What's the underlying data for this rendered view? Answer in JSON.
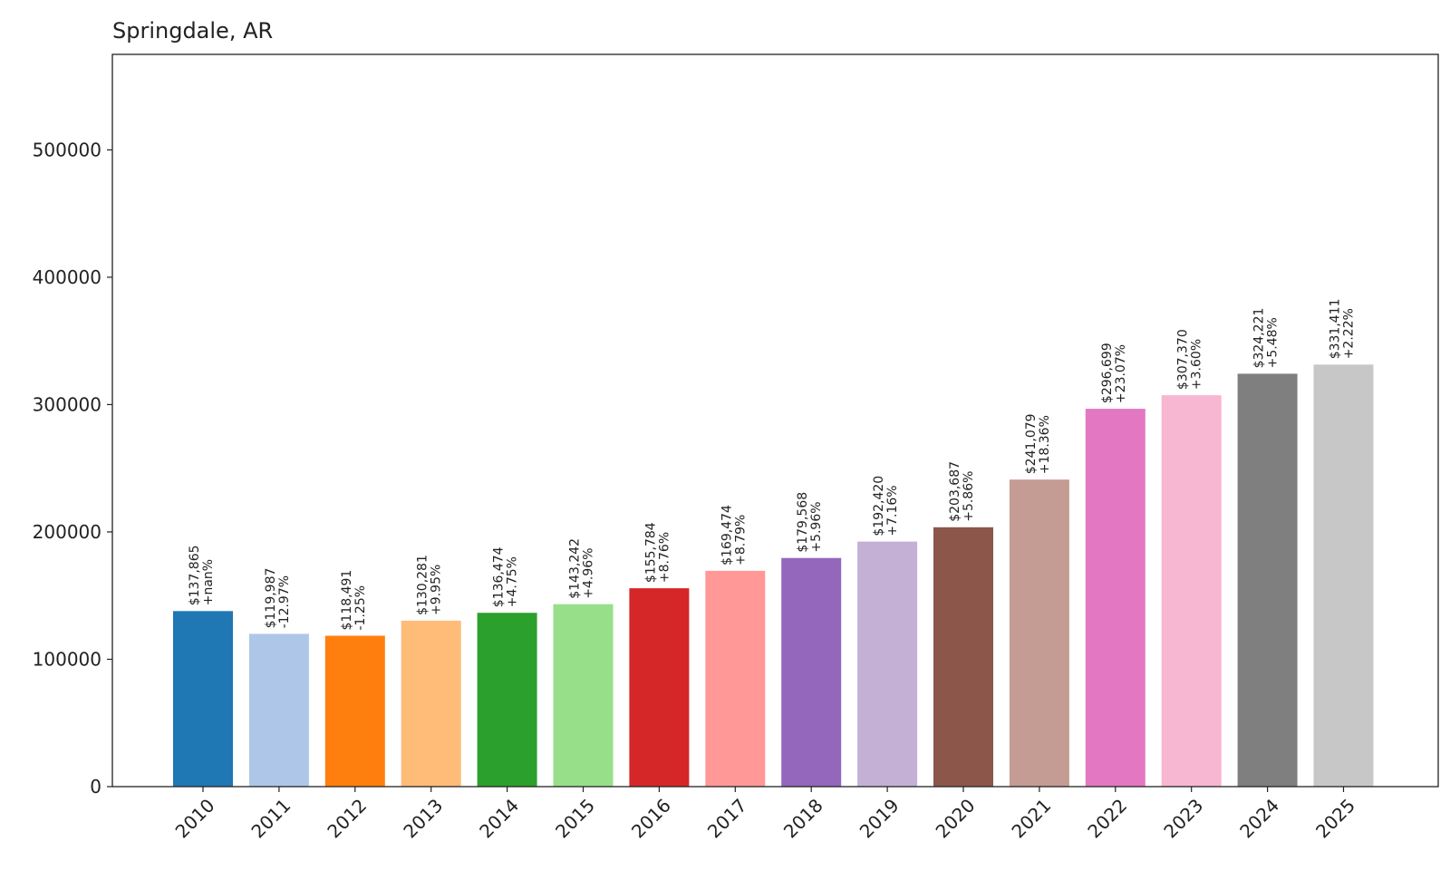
{
  "chart_data": {
    "type": "bar",
    "title": "Springdale, AR",
    "xlabel": "",
    "ylabel": "",
    "ylim": [
      0,
      575000
    ],
    "yticks": [
      0,
      100000,
      200000,
      300000,
      400000,
      500000
    ],
    "ytick_labels": [
      "0",
      "100000",
      "200000",
      "300000",
      "400000",
      "500000"
    ],
    "grid": false,
    "categories": [
      "2010",
      "2011",
      "2012",
      "2013",
      "2014",
      "2015",
      "2016",
      "2017",
      "2018",
      "2019",
      "2020",
      "2021",
      "2022",
      "2023",
      "2024",
      "2025"
    ],
    "values": [
      137865,
      119987,
      118491,
      130281,
      136474,
      143242,
      155784,
      169474,
      179568,
      192420,
      203687,
      241079,
      296699,
      307370,
      324221,
      331411
    ],
    "value_labels": [
      "$137,865",
      "$119,987",
      "$118,491",
      "$130,281",
      "$136,474",
      "$143,242",
      "$155,784",
      "$169,474",
      "$179,568",
      "$192,420",
      "$203,687",
      "$241,079",
      "$296,699",
      "$307,370",
      "$324,221",
      "$331,411"
    ],
    "change_labels": [
      "+nan%",
      "-12.97%",
      "-1.25%",
      "+9.95%",
      "+4.75%",
      "+4.96%",
      "+8.76%",
      "+8.79%",
      "+5.96%",
      "+7.16%",
      "+5.86%",
      "+18.36%",
      "+23.07%",
      "+3.60%",
      "+5.48%",
      "+2.22%"
    ],
    "colors": [
      "#1f77b4",
      "#aec7e8",
      "#ff7f0e",
      "#ffbb78",
      "#2ca02c",
      "#98df8a",
      "#d62728",
      "#ff9896",
      "#9467bd",
      "#c5b0d5",
      "#8c564b",
      "#c49c94",
      "#e377c2",
      "#f7b6d2",
      "#7f7f7f",
      "#c7c7c7"
    ]
  }
}
